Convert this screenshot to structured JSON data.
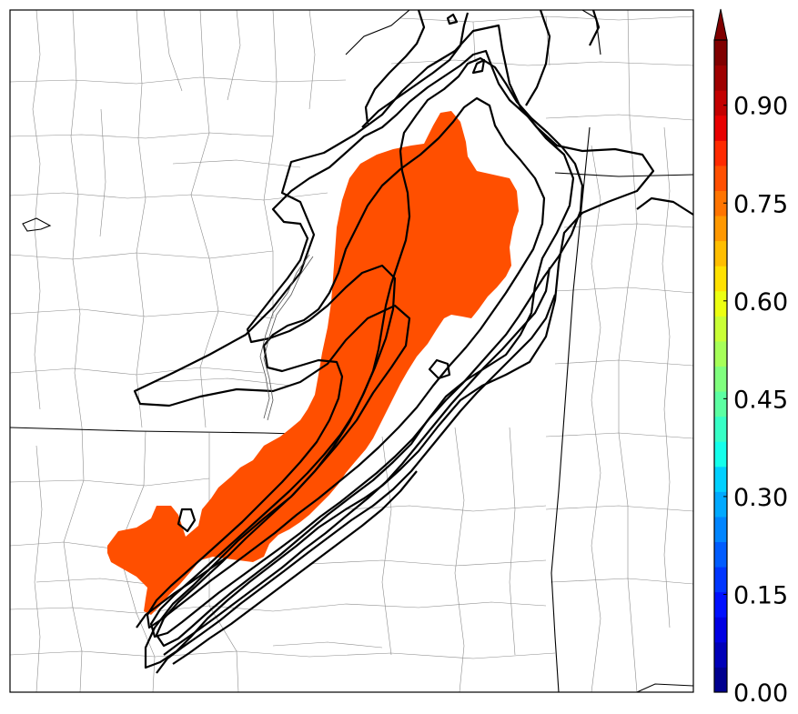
{
  "chart_data": {
    "type": "heatmap",
    "title": "",
    "xlabel": "",
    "ylabel": "",
    "colorbar": {
      "range": [
        0.0,
        1.0
      ],
      "tick_labels": [
        "0.00",
        "0.15",
        "0.30",
        "0.45",
        "0.60",
        "0.75",
        "0.90"
      ],
      "extend": "max",
      "colors": [
        "#00008f",
        "#0000b8",
        "#0000e3",
        "#0010ff",
        "#0036ff",
        "#005cff",
        "#0085ff",
        "#00a9ff",
        "#00d0ff",
        "#14ffeb",
        "#37ffc6",
        "#5cffa2",
        "#80ff7e",
        "#a6ff59",
        "#c9ff36",
        "#ecff12",
        "#ffe100",
        "#ffbe00",
        "#ff9800",
        "#ff7400",
        "#ff4f00",
        "#ff2a00",
        "#e80000",
        "#c30000",
        "#9e0000",
        "#800000"
      ]
    },
    "filled_region_value": 0.85,
    "filled_region_color": "#ff4f00",
    "contour_color": "#000000",
    "contour_count": 10
  }
}
